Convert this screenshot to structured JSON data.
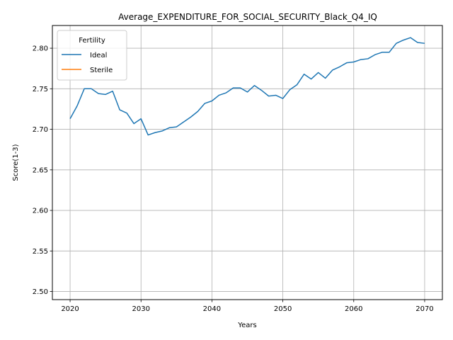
{
  "chart_data": {
    "type": "line",
    "title": "Average_EXPENDITURE_FOR_SOCIAL_SECURITY_Black_Q4_IQ",
    "xlabel": "Years",
    "ylabel": "Score(1-3)",
    "xlim": [
      2017.5,
      2072.5
    ],
    "ylim": [
      2.49,
      2.828
    ],
    "xticks": [
      2020,
      2030,
      2040,
      2050,
      2060,
      2070
    ],
    "yticks": [
      2.5,
      2.55,
      2.6,
      2.65,
      2.7,
      2.75,
      2.8
    ],
    "ytick_labels": [
      "2.50",
      "2.55",
      "2.60",
      "2.65",
      "2.70",
      "2.75",
      "2.80"
    ],
    "grid": true,
    "legend": {
      "title": "Fertility",
      "placement": "top-left"
    },
    "series": [
      {
        "name": "Ideal",
        "color": "#1f77b4",
        "x": [
          2020,
          2021,
          2022,
          2023,
          2024,
          2025,
          2026,
          2027,
          2028,
          2029,
          2030,
          2031,
          2032,
          2033,
          2034,
          2035,
          2036,
          2037,
          2038,
          2039,
          2040,
          2041,
          2042,
          2043,
          2044,
          2045,
          2046,
          2047,
          2048,
          2049,
          2050,
          2051,
          2052,
          2053,
          2054,
          2055,
          2056,
          2057,
          2058,
          2059,
          2060,
          2061,
          2062,
          2063,
          2064,
          2065,
          2066,
          2067,
          2068,
          2069,
          2070
        ],
        "y": [
          2.713,
          2.729,
          2.75,
          2.75,
          2.744,
          2.743,
          2.747,
          2.724,
          2.72,
          2.707,
          2.713,
          2.693,
          2.696,
          2.698,
          2.702,
          2.703,
          2.709,
          2.715,
          2.722,
          2.732,
          2.735,
          2.742,
          2.745,
          2.751,
          2.751,
          2.746,
          2.754,
          2.748,
          2.741,
          2.742,
          2.738,
          2.749,
          2.755,
          2.768,
          2.762,
          2.77,
          2.763,
          2.773,
          2.777,
          2.782,
          2.783,
          2.786,
          2.787,
          2.792,
          2.795,
          2.795,
          2.806,
          2.81,
          2.813,
          2.807,
          2.806
        ]
      },
      {
        "name": "Sterile",
        "color": "#ff7f0e",
        "x": [],
        "y": []
      }
    ]
  }
}
